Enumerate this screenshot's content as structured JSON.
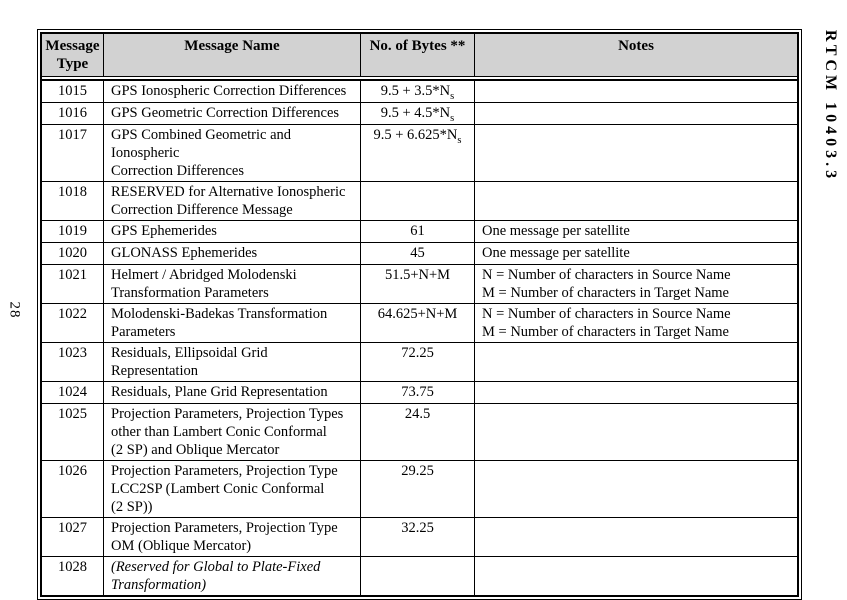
{
  "page": {
    "left_page_number": "28",
    "right_doc_code": "RTCM 10403.3"
  },
  "colors": {
    "header_bg": "#d2d2d2",
    "border": "#000000",
    "text": "#000000",
    "page_bg": "#ffffff"
  },
  "table": {
    "columns": [
      "Message Type",
      "Message Name",
      "No. of Bytes **",
      "Notes"
    ],
    "rows": [
      {
        "type": "1015",
        "name": "GPS Ionospheric Correction Differences",
        "bytes": "9.5 + 3.5*N",
        "bytes_sub": "s",
        "notes": ""
      },
      {
        "type": "1016",
        "name": "GPS Geometric Correction Differences",
        "bytes": "9.5 + 4.5*N",
        "bytes_sub": "s",
        "notes": ""
      },
      {
        "type": "1017",
        "name": "GPS Combined Geometric and Ionospheric\nCorrection Differences",
        "bytes": "9.5 + 6.625*N",
        "bytes_sub": "s",
        "notes": ""
      },
      {
        "type": "1018",
        "name": "RESERVED for Alternative Ionospheric\nCorrection Difference Message",
        "bytes": "",
        "bytes_sub": "",
        "notes": ""
      },
      {
        "type": "1019",
        "name": "GPS Ephemerides",
        "bytes": "61",
        "bytes_sub": "",
        "notes": "One message per satellite"
      },
      {
        "type": "1020",
        "name": "GLONASS Ephemerides",
        "bytes": "45",
        "bytes_sub": "",
        "notes": "One message per satellite"
      },
      {
        "type": "1021",
        "name": "Helmert / Abridged Molodenski\nTransformation Parameters",
        "bytes": "51.5+N+M",
        "bytes_sub": "",
        "notes": "N = Number of characters in Source Name\nM = Number of characters in Target Name"
      },
      {
        "type": "1022",
        "name": "Molodenski-Badekas Transformation\nParameters",
        "bytes": "64.625+N+M",
        "bytes_sub": "",
        "notes": "N = Number of characters in Source Name\nM = Number of characters in Target Name"
      },
      {
        "type": "1023",
        "name": "Residuals, Ellipsoidal Grid Representation",
        "bytes": "72.25",
        "bytes_sub": "",
        "notes": ""
      },
      {
        "type": "1024",
        "name": "Residuals, Plane Grid Representation",
        "bytes": "73.75",
        "bytes_sub": "",
        "notes": ""
      },
      {
        "type": "1025",
        "name": "Projection Parameters, Projection Types\nother than Lambert Conic Conformal\n(2 SP) and Oblique Mercator",
        "bytes": "24.5",
        "bytes_sub": "",
        "notes": ""
      },
      {
        "type": "1026",
        "name": "Projection Parameters, Projection Type\nLCC2SP (Lambert Conic Conformal\n(2 SP))",
        "bytes": "29.25",
        "bytes_sub": "",
        "notes": ""
      },
      {
        "type": "1027",
        "name": "Projection Parameters, Projection Type\nOM (Oblique Mercator)",
        "bytes": "32.25",
        "bytes_sub": "",
        "notes": ""
      },
      {
        "type": "1028",
        "name": "(Reserved for Global to Plate-Fixed\nTransformation)",
        "bytes": "",
        "bytes_sub": "",
        "notes": ""
      }
    ]
  }
}
